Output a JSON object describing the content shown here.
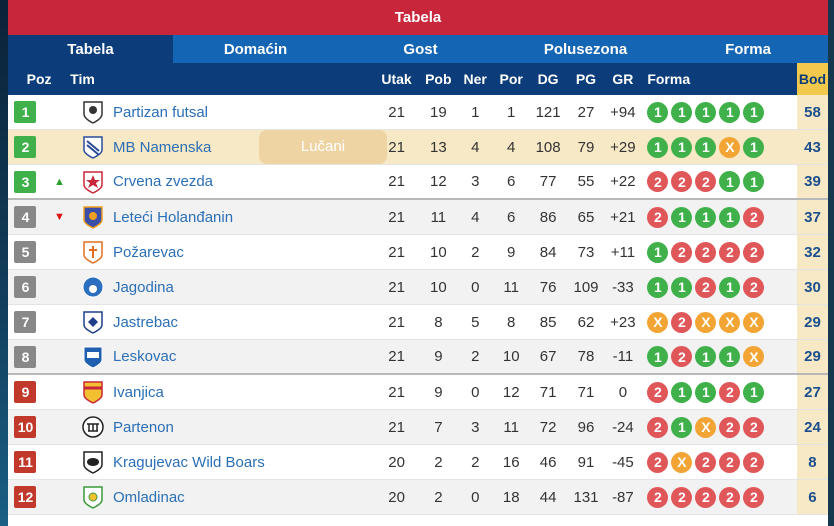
{
  "title": "Tabela",
  "tabs": [
    {
      "label": "Tabela",
      "active": true
    },
    {
      "label": "Domaćin",
      "active": false
    },
    {
      "label": "Gost",
      "active": false
    },
    {
      "label": "Polusezona",
      "active": false
    },
    {
      "label": "Forma",
      "active": false
    }
  ],
  "columns": {
    "poz": "Poz",
    "tim": "Tim",
    "utak": "Utak",
    "pob": "Pob",
    "ner": "Ner",
    "por": "Por",
    "dg": "DG",
    "pg": "PG",
    "gr": "GR",
    "forma": "Forma",
    "bod": "Bod"
  },
  "tooltip": "Lučani",
  "colors": {
    "title_bar": "#c8263a",
    "tab_bar": "#1565b5",
    "header": "#0c3d7a",
    "promo": "#3fb04a",
    "mid": "#888888",
    "releg": "#c0392b",
    "win": "#3fb04a",
    "loss": "#e0575a",
    "draw": "#f2a535",
    "points_bg": "#f7e8c6"
  },
  "rows": [
    {
      "poz": "1",
      "move": "",
      "team": "Partizan futsal",
      "crest": "partizan-crest-icon",
      "utak": "21",
      "pob": "19",
      "ner": "1",
      "por": "1",
      "dg": "121",
      "pg": "27",
      "gr": "+94",
      "forma": [
        "1",
        "1",
        "1",
        "1",
        "1"
      ],
      "bod": "58",
      "zone": "promo"
    },
    {
      "poz": "2",
      "move": "",
      "team": "MB Namenska",
      "crest": "mb-namenska-crest-icon",
      "utak": "21",
      "pob": "13",
      "ner": "4",
      "por": "4",
      "dg": "108",
      "pg": "79",
      "gr": "+29",
      "forma": [
        "1",
        "1",
        "1",
        "X",
        "1"
      ],
      "bod": "43",
      "zone": "promo"
    },
    {
      "poz": "3",
      "move": "up",
      "team": "Crvena zvezda",
      "crest": "crvena-zvezda-crest-icon",
      "utak": "21",
      "pob": "12",
      "ner": "3",
      "por": "6",
      "dg": "77",
      "pg": "55",
      "gr": "+22",
      "forma": [
        "2",
        "2",
        "2",
        "1",
        "1"
      ],
      "bod": "39",
      "zone": "promo"
    },
    {
      "poz": "4",
      "move": "down",
      "team": "Leteći Holanđanin",
      "crest": "leteci-holandjanin-crest-icon",
      "utak": "21",
      "pob": "11",
      "ner": "4",
      "por": "6",
      "dg": "86",
      "pg": "65",
      "gr": "+21",
      "forma": [
        "2",
        "1",
        "1",
        "1",
        "2"
      ],
      "bod": "37",
      "zone": "mid"
    },
    {
      "poz": "5",
      "move": "",
      "team": "Požarevac",
      "crest": "pozarevac-crest-icon",
      "utak": "21",
      "pob": "10",
      "ner": "2",
      "por": "9",
      "dg": "84",
      "pg": "73",
      "gr": "+11",
      "forma": [
        "1",
        "2",
        "2",
        "2",
        "2"
      ],
      "bod": "32",
      "zone": "mid"
    },
    {
      "poz": "6",
      "move": "",
      "team": "Jagodina",
      "crest": "jagodina-crest-icon",
      "utak": "21",
      "pob": "10",
      "ner": "0",
      "por": "11",
      "dg": "76",
      "pg": "109",
      "gr": "-33",
      "forma": [
        "1",
        "1",
        "2",
        "1",
        "2"
      ],
      "bod": "30",
      "zone": "mid"
    },
    {
      "poz": "7",
      "move": "",
      "team": "Jastrebac",
      "crest": "jastrebac-crest-icon",
      "utak": "21",
      "pob": "8",
      "ner": "5",
      "por": "8",
      "dg": "85",
      "pg": "62",
      "gr": "+23",
      "forma": [
        "X",
        "2",
        "X",
        "X",
        "X"
      ],
      "bod": "29",
      "zone": "mid"
    },
    {
      "poz": "8",
      "move": "",
      "team": "Leskovac",
      "crest": "leskovac-crest-icon",
      "utak": "21",
      "pob": "9",
      "ner": "2",
      "por": "10",
      "dg": "67",
      "pg": "78",
      "gr": "-11",
      "forma": [
        "1",
        "2",
        "1",
        "1",
        "X"
      ],
      "bod": "29",
      "zone": "mid"
    },
    {
      "poz": "9",
      "move": "",
      "team": "Ivanjica",
      "crest": "ivanjica-crest-icon",
      "utak": "21",
      "pob": "9",
      "ner": "0",
      "por": "12",
      "dg": "71",
      "pg": "71",
      "gr": "0",
      "forma": [
        "2",
        "1",
        "1",
        "2",
        "1"
      ],
      "bod": "27",
      "zone": "releg"
    },
    {
      "poz": "10",
      "move": "",
      "team": "Partenon",
      "crest": "partenon-crest-icon",
      "utak": "21",
      "pob": "7",
      "ner": "3",
      "por": "11",
      "dg": "72",
      "pg": "96",
      "gr": "-24",
      "forma": [
        "2",
        "1",
        "X",
        "2",
        "2"
      ],
      "bod": "24",
      "zone": "releg"
    },
    {
      "poz": "11",
      "move": "",
      "team": "Kragujevac Wild Boars",
      "crest": "kragujevac-wild-boars-crest-icon",
      "utak": "20",
      "pob": "2",
      "ner": "2",
      "por": "16",
      "dg": "46",
      "pg": "91",
      "gr": "-45",
      "forma": [
        "2",
        "X",
        "2",
        "2",
        "2"
      ],
      "bod": "8",
      "zone": "releg"
    },
    {
      "poz": "12",
      "move": "",
      "team": "Omladinac",
      "crest": "omladinac-crest-icon",
      "utak": "20",
      "pob": "2",
      "ner": "0",
      "por": "18",
      "dg": "44",
      "pg": "131",
      "gr": "-87",
      "forma": [
        "2",
        "2",
        "2",
        "2",
        "2"
      ],
      "bod": "6",
      "zone": "releg"
    }
  ]
}
